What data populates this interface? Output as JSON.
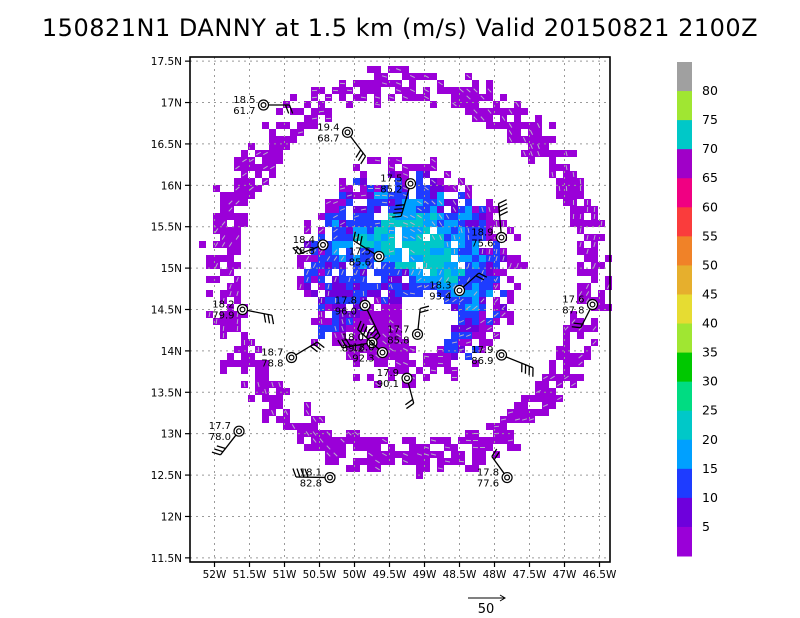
{
  "title": "150821N1 DANNY at 1.5 km (m/s) Valid 20150821  2100Z",
  "chart_data": {
    "type": "heatmap",
    "x_axis": {
      "range": [
        -52.35,
        -46.35
      ],
      "ticks": [
        {
          "v": -52.0,
          "label": "52W"
        },
        {
          "v": -51.5,
          "label": "51.5W"
        },
        {
          "v": -51.0,
          "label": "51W"
        },
        {
          "v": -50.5,
          "label": "50.5W"
        },
        {
          "v": -50.0,
          "label": "50W"
        },
        {
          "v": -49.5,
          "label": "49.5W"
        },
        {
          "v": -49.0,
          "label": "49W"
        },
        {
          "v": -48.5,
          "label": "48.5W"
        },
        {
          "v": -48.0,
          "label": "48W"
        },
        {
          "v": -47.5,
          "label": "47.5W"
        },
        {
          "v": -47.0,
          "label": "47W"
        },
        {
          "v": -46.5,
          "label": "46.5W"
        }
      ]
    },
    "y_axis": {
      "range": [
        11.45,
        17.55
      ],
      "ticks": [
        {
          "v": 11.5,
          "label": "11.5N"
        },
        {
          "v": 12.0,
          "label": "12N"
        },
        {
          "v": 12.5,
          "label": "12.5N"
        },
        {
          "v": 13.0,
          "label": "13N"
        },
        {
          "v": 13.5,
          "label": "13.5N"
        },
        {
          "v": 14.0,
          "label": "14N"
        },
        {
          "v": 14.5,
          "label": "14.5N"
        },
        {
          "v": 15.0,
          "label": "15N"
        },
        {
          "v": 15.5,
          "label": "15.5N"
        },
        {
          "v": 16.0,
          "label": "16N"
        },
        {
          "v": 16.5,
          "label": "16.5N"
        },
        {
          "v": 17.0,
          "label": "17N"
        },
        {
          "v": 17.5,
          "label": "17.5N"
        }
      ]
    },
    "grid": true,
    "colorbar": {
      "levels": [
        "5",
        "10",
        "15",
        "20",
        "25",
        "30",
        "35",
        "40",
        "45",
        "50",
        "55",
        "60",
        "65",
        "70",
        "75",
        "80"
      ],
      "colors": [
        "#9a00d8",
        "#6e00dc",
        "#1e3cff",
        "#00a0ff",
        "#00c8c8",
        "#00dc82",
        "#00c800",
        "#a0e632",
        "#e6dc32",
        "#e6af2d",
        "#f08228",
        "#fa3c3c",
        "#f00082",
        "#a000c8",
        "#00c8c8",
        "#a0e632",
        "#a0a0a0"
      ]
    },
    "field": {
      "center": [
        -49.25,
        14.95
      ],
      "description": "ring of weak winds"
    },
    "dropsondes": [
      {
        "lon": -51.3,
        "lat": 16.97,
        "label": "18.5\n61.7",
        "bft": 0
      },
      {
        "lon": -50.1,
        "lat": 16.64,
        "label": "19.4\n68.7",
        "bft": 0
      },
      {
        "lon": -49.2,
        "lat": 16.02,
        "label": "17.5\n85.2",
        "bft": 0
      },
      {
        "lon": -50.45,
        "lat": 15.28,
        "label": "18.4\n78.8",
        "bft": 0
      },
      {
        "lon": -49.65,
        "lat": 15.14,
        "label": "17.5\n85.6",
        "bft": 0
      },
      {
        "lon": -47.9,
        "lat": 15.37,
        "label": "18.9\n75.6",
        "bft": 0
      },
      {
        "lon": -48.5,
        "lat": 14.73,
        "label": "18.3\n93.4",
        "bft": 0
      },
      {
        "lon": -51.6,
        "lat": 14.5,
        "label": "18.2\n79.9",
        "bft": 0
      },
      {
        "lon": -49.85,
        "lat": 14.55,
        "label": "17.8\n96.0",
        "bft": 0
      },
      {
        "lon": -46.6,
        "lat": 14.56,
        "label": "17.6\n87.8",
        "bft": 0
      },
      {
        "lon": -49.75,
        "lat": 14.1,
        "label": "18.0\n89.2",
        "bft": 0
      },
      {
        "lon": -49.6,
        "lat": 13.98,
        "label": "18.0\n92.3",
        "bft": 0
      },
      {
        "lon": -49.1,
        "lat": 14.2,
        "label": "17.7\n85.8",
        "bft": 0
      },
      {
        "lon": -50.9,
        "lat": 13.92,
        "label": "18.7\n78.8",
        "bft": 0
      },
      {
        "lon": -47.9,
        "lat": 13.95,
        "label": "17.9\n86.9",
        "bft": 0
      },
      {
        "lon": -49.25,
        "lat": 13.67,
        "label": "17.9\n90.1",
        "bft": 0
      },
      {
        "lon": -51.65,
        "lat": 13.03,
        "label": "17.7\n78.0",
        "bft": 0
      },
      {
        "lon": -50.35,
        "lat": 12.47,
        "label": "18.1\n82.8",
        "bft": 0
      },
      {
        "lon": -47.82,
        "lat": 12.47,
        "label": "17.8\n77.6",
        "bft": 0
      }
    ],
    "reference_vector": {
      "label": "50"
    }
  }
}
